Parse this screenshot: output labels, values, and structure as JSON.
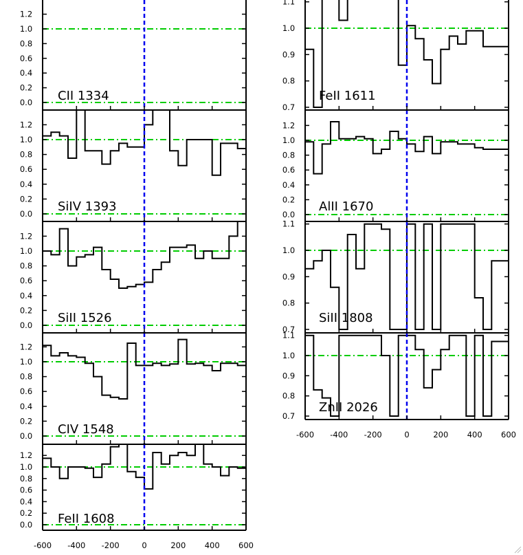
{
  "chart_data": [
    {
      "type": "line",
      "label": "CII 1334",
      "xlim": [
        -600,
        600
      ],
      "ylim": [
        -0.1,
        1.4
      ],
      "yticks": [
        "0.0",
        "0.2",
        "0.4",
        "0.6",
        "0.8",
        "1.0",
        "1.2"
      ],
      "x": [],
      "y": []
    },
    {
      "type": "line",
      "label": "SiIV 1393",
      "xlim": [
        -600,
        600
      ],
      "ylim": [
        -0.1,
        1.4
      ],
      "yticks": [
        "0.0",
        "0.2",
        "0.4",
        "0.6",
        "0.8",
        "1.0",
        "1.2"
      ],
      "x": [
        -600,
        -550,
        -500,
        -450,
        -400,
        -350,
        -300,
        -250,
        -200,
        -150,
        -100,
        -50,
        0,
        50,
        100,
        150,
        200,
        250,
        300,
        350,
        400,
        450,
        500,
        550
      ],
      "y": [
        1.05,
        1.1,
        1.05,
        0.75,
        1.4,
        0.85,
        0.85,
        0.67,
        0.85,
        0.95,
        0.9,
        0.9,
        1.2,
        1.4,
        1.4,
        0.85,
        0.65,
        1.0,
        1.0,
        1.0,
        0.52,
        0.95,
        0.95,
        0.88
      ]
    },
    {
      "type": "line",
      "label": "SiII 1526",
      "xlim": [
        -600,
        600
      ],
      "ylim": [
        -0.1,
        1.4
      ],
      "yticks": [
        "0.0",
        "0.2",
        "0.4",
        "0.6",
        "0.8",
        "1.0",
        "1.2"
      ],
      "x": [
        -600,
        -550,
        -500,
        -450,
        -400,
        -350,
        -300,
        -250,
        -200,
        -150,
        -100,
        -50,
        0,
        50,
        100,
        150,
        200,
        250,
        300,
        350,
        400,
        450,
        500,
        550
      ],
      "y": [
        1.0,
        0.95,
        1.3,
        0.8,
        0.92,
        0.95,
        1.05,
        0.75,
        0.62,
        0.5,
        0.52,
        0.55,
        0.58,
        0.75,
        0.85,
        1.05,
        1.05,
        1.08,
        0.9,
        1.0,
        0.9,
        0.9,
        1.2,
        1.4
      ]
    },
    {
      "type": "line",
      "label": "CIV 1548",
      "xlim": [
        -600,
        600
      ],
      "ylim": [
        -0.1,
        1.4
      ],
      "yticks": [
        "0.0",
        "0.2",
        "0.4",
        "0.6",
        "0.8",
        "1.0",
        "1.2"
      ],
      "x": [
        -600,
        -550,
        -500,
        -450,
        -400,
        -350,
        -300,
        -250,
        -200,
        -150,
        -100,
        -50,
        0,
        50,
        100,
        150,
        200,
        250,
        300,
        350,
        400,
        450,
        500,
        550
      ],
      "y": [
        1.22,
        1.08,
        1.12,
        1.08,
        1.06,
        0.98,
        0.8,
        0.55,
        0.52,
        0.5,
        1.25,
        0.95,
        0.95,
        0.98,
        0.95,
        0.97,
        1.3,
        0.97,
        0.98,
        0.95,
        0.88,
        0.98,
        0.98,
        0.95
      ]
    },
    {
      "type": "line",
      "label": "FeII 1608",
      "xlim": [
        -600,
        600
      ],
      "ylim": [
        -0.1,
        1.4
      ],
      "yticks": [
        "0.0",
        "0.2",
        "0.4",
        "0.6",
        "0.8",
        "1.0",
        "1.2"
      ],
      "x": [
        -600,
        -550,
        -500,
        -450,
        -400,
        -350,
        -300,
        -250,
        -200,
        -150,
        -100,
        -50,
        0,
        50,
        100,
        150,
        200,
        250,
        300,
        350,
        400,
        450,
        500,
        550
      ],
      "y": [
        1.15,
        1.0,
        0.8,
        1.0,
        1.0,
        0.98,
        0.82,
        1.05,
        1.35,
        1.4,
        0.92,
        0.82,
        0.62,
        1.25,
        1.05,
        1.2,
        1.25,
        1.2,
        1.4,
        1.05,
        1.0,
        0.85,
        1.0,
        0.98
      ]
    },
    {
      "type": "line",
      "label": "FeII 1611",
      "xlim": [
        -600,
        600
      ],
      "ylim": [
        0.7,
        1.1
      ],
      "yticks": [
        "0.7",
        "0.8",
        "0.9",
        "1.0",
        "1.1"
      ],
      "x": [
        -600,
        -550,
        -500,
        -450,
        -400,
        -350,
        -300,
        -250,
        -200,
        -150,
        -100,
        -50,
        0,
        50,
        100,
        150,
        200,
        250,
        300,
        350,
        400,
        450,
        500,
        550
      ],
      "y": [
        0.92,
        0.7,
        1.12,
        1.12,
        1.03,
        1.12,
        1.12,
        1.12,
        1.12,
        1.12,
        1.12,
        0.86,
        1.01,
        0.96,
        0.88,
        0.79,
        0.92,
        0.97,
        0.94,
        0.99,
        0.99,
        0.93,
        0.93,
        0.93
      ]
    },
    {
      "type": "line",
      "label": "AlII 1670",
      "xlim": [
        -600,
        600
      ],
      "ylim": [
        -0.1,
        1.4
      ],
      "yticks": [
        "0.0",
        "0.2",
        "0.4",
        "0.6",
        "0.8",
        "1.0",
        "1.2"
      ],
      "x": [
        -600,
        -550,
        -500,
        -450,
        -400,
        -350,
        -300,
        -250,
        -200,
        -150,
        -100,
        -50,
        0,
        50,
        100,
        150,
        200,
        250,
        300,
        350,
        400,
        450,
        500,
        550
      ],
      "y": [
        0.98,
        0.55,
        0.95,
        1.25,
        1.02,
        1.02,
        1.05,
        1.02,
        0.82,
        0.88,
        1.12,
        1.02,
        0.95,
        0.85,
        1.05,
        0.82,
        0.98,
        0.98,
        0.95,
        0.95,
        0.9,
        0.88,
        0.88,
        0.88
      ]
    },
    {
      "type": "line",
      "label": "SiII 1808",
      "xlim": [
        -600,
        600
      ],
      "ylim": [
        0.7,
        1.1
      ],
      "yticks": [
        "0.7",
        "0.8",
        "0.9",
        "1.0",
        "1.1"
      ],
      "x": [
        -600,
        -550,
        -500,
        -450,
        -400,
        -350,
        -300,
        -250,
        -200,
        -150,
        -100,
        -50,
        0,
        50,
        100,
        150,
        200,
        250,
        300,
        350,
        400,
        450,
        500,
        550
      ],
      "y": [
        0.93,
        0.96,
        1.0,
        0.86,
        0.7,
        1.06,
        0.93,
        1.1,
        1.1,
        1.08,
        0.7,
        0.7,
        1.1,
        0.7,
        1.1,
        0.7,
        1.1,
        1.1,
        1.1,
        1.1,
        0.82,
        0.7,
        0.96,
        0.96
      ]
    },
    {
      "type": "line",
      "label": "ZnII 2026",
      "xlim": [
        -600,
        600
      ],
      "ylim": [
        0.7,
        1.1
      ],
      "yticks": [
        "0.7",
        "0.8",
        "0.9",
        "1.0",
        "1.1"
      ],
      "x": [
        -600,
        -550,
        -500,
        -450,
        -400,
        -350,
        -300,
        -250,
        -200,
        -150,
        -100,
        -50,
        0,
        50,
        100,
        150,
        200,
        250,
        300,
        350,
        400,
        450,
        500,
        550
      ],
      "y": [
        1.1,
        0.83,
        0.79,
        0.7,
        1.1,
        1.1,
        1.1,
        1.1,
        1.1,
        1.0,
        0.7,
        1.1,
        1.1,
        1.03,
        0.84,
        0.93,
        1.03,
        1.1,
        1.1,
        0.7,
        1.1,
        0.7,
        1.07,
        1.07
      ]
    }
  ],
  "xticks": [
    "-600",
    "-400",
    "-200",
    "0",
    "200",
    "400",
    "600"
  ],
  "xtick_values": [
    -600,
    -400,
    -200,
    0,
    200,
    400,
    600
  ],
  "continuum_level": 1.0,
  "zero_level": 0.0,
  "colors": {
    "spectrum": "#000000",
    "continuum": "#00cc00",
    "velocity_zero": "#0000ee",
    "axes": "#000000"
  }
}
